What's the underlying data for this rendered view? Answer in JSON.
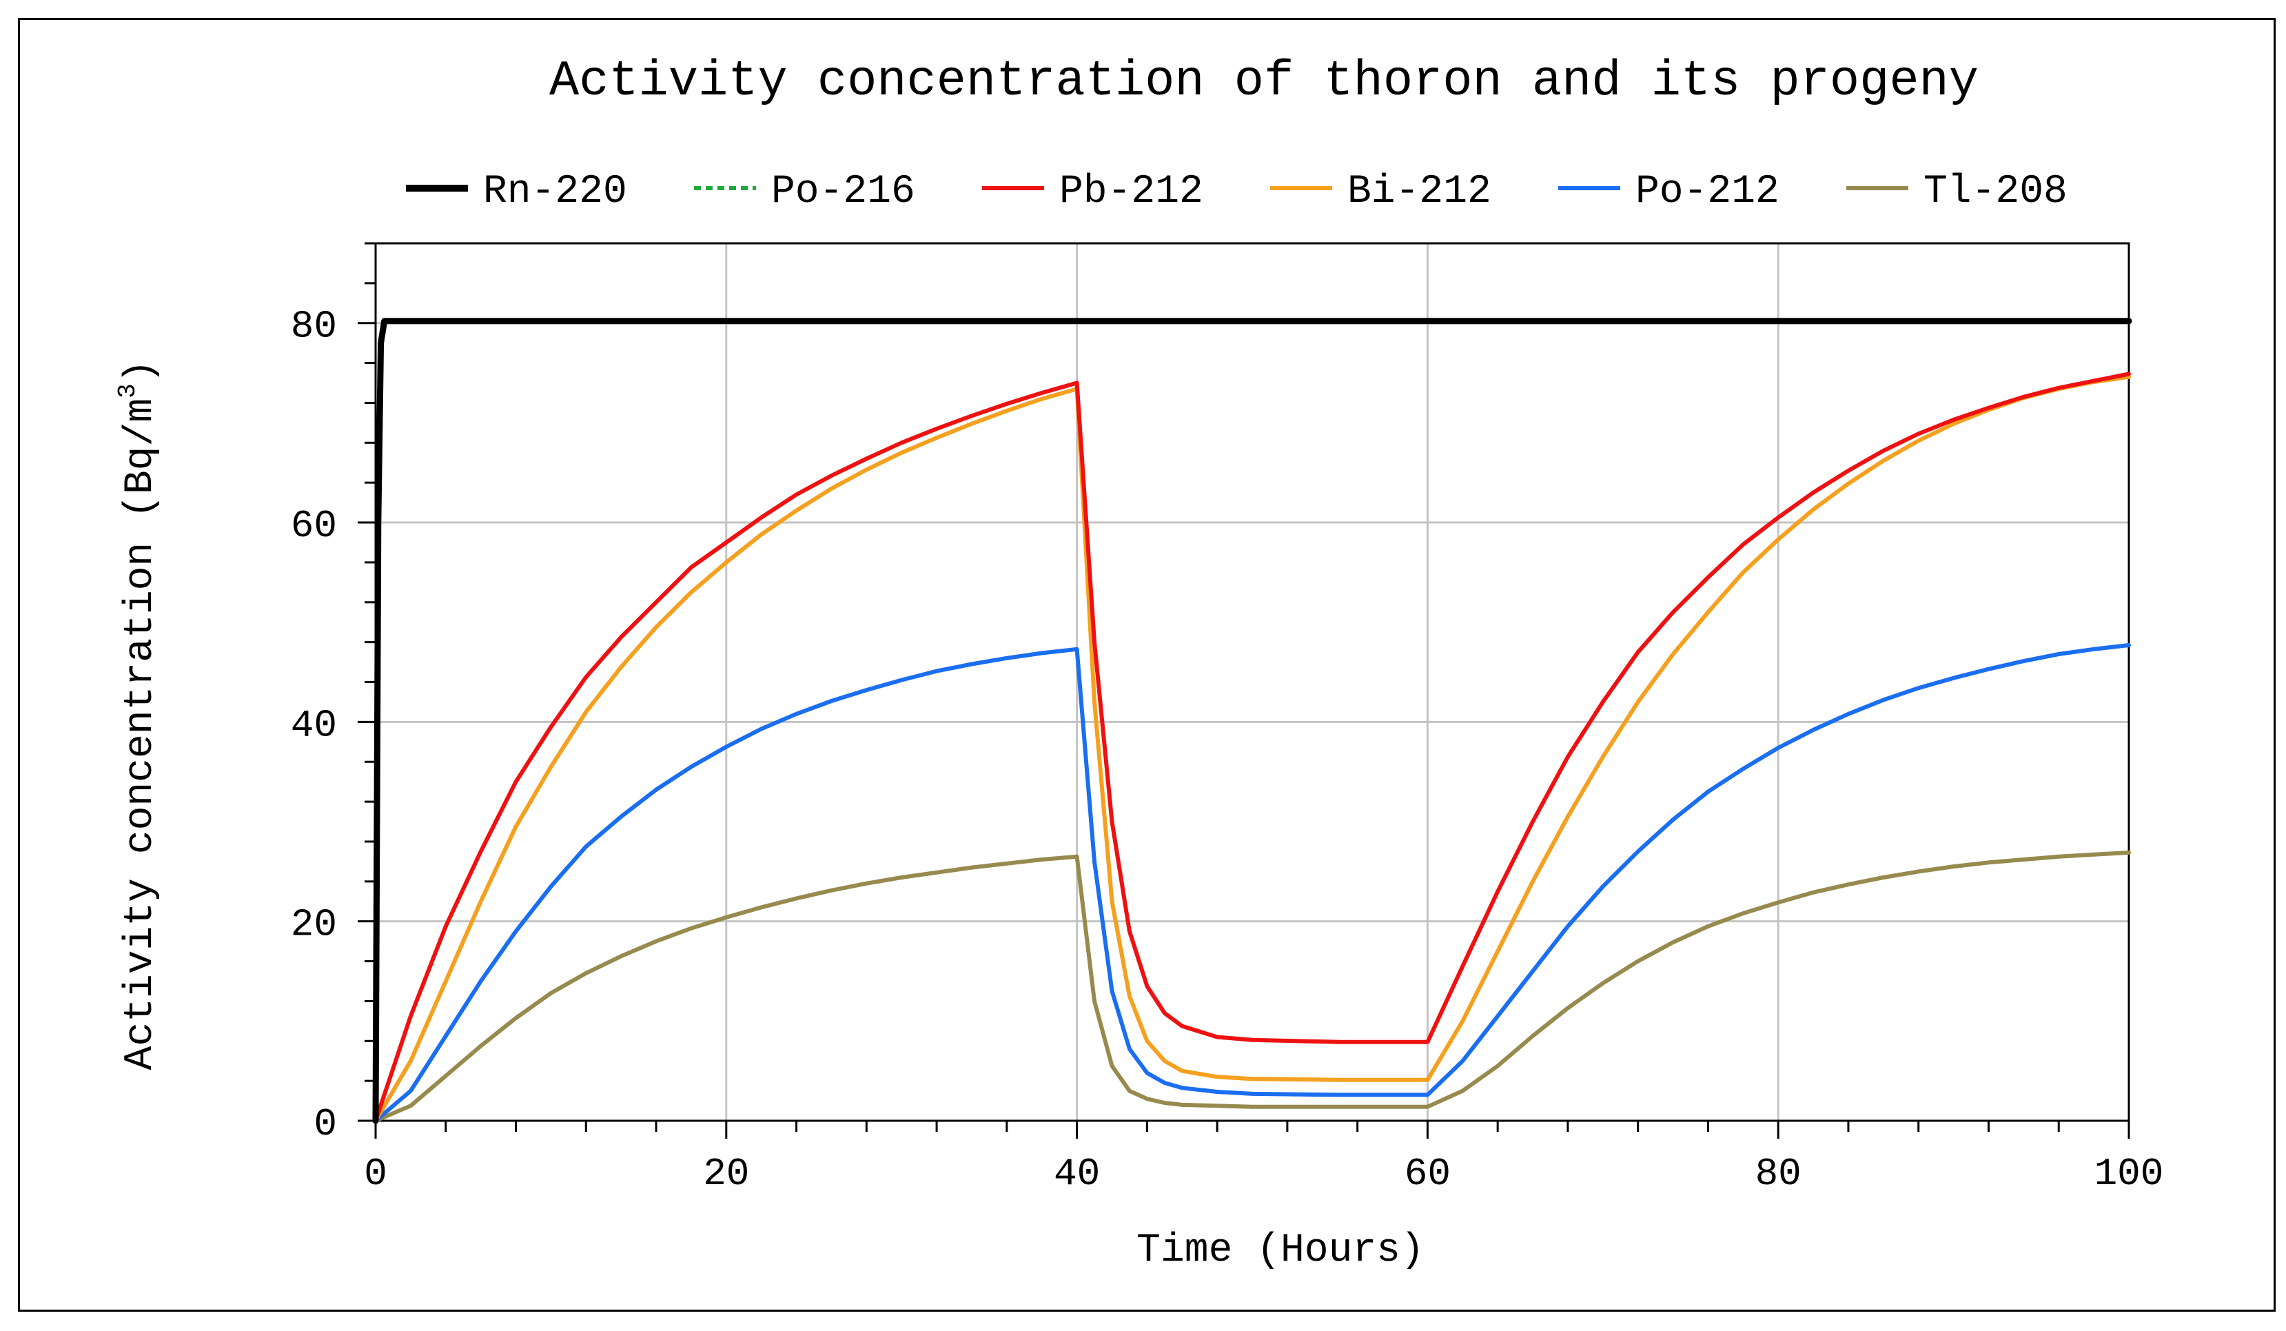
{
  "chart_data": {
    "type": "line",
    "title": "Activity concentration of thoron and its progeny",
    "xlabel": "Time (Hours)",
    "ylabel_main": "Activity concentration (Bq/m",
    "ylabel_sup": "3",
    "ylabel_end": ")",
    "xlim": [
      0,
      100
    ],
    "ylim": [
      0,
      88
    ],
    "xticks": [
      0,
      20,
      40,
      60,
      80,
      100
    ],
    "yticks": [
      0,
      20,
      40,
      60,
      80
    ],
    "grid": true,
    "legend_position": "top",
    "series": [
      {
        "name": "Rn-220",
        "color": "#000000",
        "dash": "solid",
        "x": [
          0,
          0.15,
          0.3,
          0.5,
          100
        ],
        "y": [
          0,
          60,
          78,
          80.2,
          80.2
        ]
      },
      {
        "name": "Po-216",
        "color": "#1faa3c",
        "dash": "dashed",
        "x": [
          0,
          0.15,
          0.3,
          0.5,
          100
        ],
        "y": [
          0,
          58,
          77,
          80.2,
          80.2
        ]
      },
      {
        "name": "Pb-212",
        "color": "#ee1111",
        "dash": "solid",
        "x": [
          0,
          2,
          4,
          6,
          8,
          10,
          12,
          14,
          16,
          18,
          20,
          22,
          24,
          26,
          28,
          30,
          32,
          34,
          36,
          38,
          40,
          41,
          42,
          43,
          44,
          45,
          46,
          48,
          50,
          55,
          60,
          62,
          64,
          66,
          68,
          70,
          72,
          74,
          76,
          78,
          80,
          82,
          84,
          86,
          88,
          90,
          92,
          94,
          96,
          98,
          100
        ],
        "y": [
          0,
          10.5,
          19.5,
          27,
          34,
          39.5,
          44.5,
          48.5,
          52,
          55.5,
          58,
          60.5,
          62.8,
          64.7,
          66.4,
          68,
          69.4,
          70.7,
          71.9,
          73,
          74,
          48,
          30,
          19,
          13.5,
          10.8,
          9.5,
          8.4,
          8.1,
          7.9,
          7.9,
          15.5,
          23,
          30,
          36.5,
          42,
          47,
          51,
          54.5,
          57.8,
          60.5,
          63,
          65.2,
          67.2,
          68.9,
          70.3,
          71.5,
          72.6,
          73.5,
          74.2,
          74.9
        ]
      },
      {
        "name": "Bi-212",
        "color": "#f5a01e",
        "dash": "solid",
        "x": [
          0,
          2,
          4,
          6,
          8,
          10,
          12,
          14,
          16,
          18,
          20,
          22,
          24,
          26,
          28,
          30,
          32,
          34,
          36,
          38,
          40,
          41,
          42,
          43,
          44,
          45,
          46,
          48,
          50,
          55,
          60,
          62,
          64,
          66,
          68,
          70,
          72,
          74,
          76,
          78,
          80,
          82,
          84,
          86,
          88,
          90,
          92,
          94,
          96,
          98,
          100
        ],
        "y": [
          0,
          6,
          14,
          22,
          29.5,
          35.5,
          41,
          45.5,
          49.5,
          53,
          56,
          58.8,
          61.2,
          63.4,
          65.3,
          67,
          68.5,
          69.9,
          71.2,
          72.4,
          73.4,
          42,
          22,
          12.5,
          8,
          6,
          5,
          4.4,
          4.2,
          4.1,
          4.1,
          10,
          17,
          24,
          30.5,
          36.5,
          42,
          46.8,
          51,
          55,
          58.3,
          61.3,
          63.9,
          66.2,
          68.2,
          69.9,
          71.3,
          72.5,
          73.4,
          74.1,
          74.6
        ]
      },
      {
        "name": "Po-212",
        "color": "#1a6ef0",
        "dash": "solid",
        "x": [
          0,
          2,
          4,
          6,
          8,
          10,
          12,
          14,
          16,
          18,
          20,
          22,
          24,
          26,
          28,
          30,
          32,
          34,
          36,
          38,
          40,
          41,
          42,
          43,
          44,
          45,
          46,
          48,
          50,
          55,
          60,
          62,
          64,
          66,
          68,
          70,
          72,
          74,
          76,
          78,
          80,
          82,
          84,
          86,
          88,
          90,
          92,
          94,
          96,
          98,
          100
        ],
        "y": [
          0,
          3,
          8.5,
          14,
          19,
          23.5,
          27.5,
          30.5,
          33.2,
          35.5,
          37.5,
          39.3,
          40.8,
          42.1,
          43.2,
          44.2,
          45.1,
          45.8,
          46.4,
          46.9,
          47.3,
          26,
          13,
          7.2,
          4.8,
          3.8,
          3.3,
          2.9,
          2.7,
          2.6,
          2.6,
          6,
          10.5,
          15,
          19.5,
          23.5,
          27,
          30.2,
          33,
          35.3,
          37.4,
          39.2,
          40.8,
          42.2,
          43.4,
          44.4,
          45.3,
          46.1,
          46.8,
          47.3,
          47.7
        ]
      },
      {
        "name": "Tl-208",
        "color": "#978a4e",
        "dash": "solid",
        "x": [
          0,
          2,
          4,
          6,
          8,
          10,
          12,
          14,
          16,
          18,
          20,
          22,
          24,
          26,
          28,
          30,
          32,
          34,
          36,
          38,
          40,
          41,
          42,
          43,
          44,
          45,
          46,
          48,
          50,
          55,
          60,
          62,
          64,
          66,
          68,
          70,
          72,
          74,
          76,
          78,
          80,
          82,
          84,
          86,
          88,
          90,
          92,
          94,
          96,
          98,
          100
        ],
        "y": [
          0,
          1.5,
          4.5,
          7.5,
          10.3,
          12.8,
          14.8,
          16.5,
          18,
          19.3,
          20.4,
          21.4,
          22.3,
          23.1,
          23.8,
          24.4,
          24.9,
          25.4,
          25.8,
          26.2,
          26.5,
          12,
          5.5,
          3,
          2.2,
          1.8,
          1.6,
          1.5,
          1.4,
          1.4,
          1.4,
          3,
          5.5,
          8.5,
          11.3,
          13.8,
          16,
          17.9,
          19.5,
          20.8,
          21.9,
          22.9,
          23.7,
          24.4,
          25,
          25.5,
          25.9,
          26.2,
          26.5,
          26.7,
          26.9
        ]
      }
    ]
  }
}
